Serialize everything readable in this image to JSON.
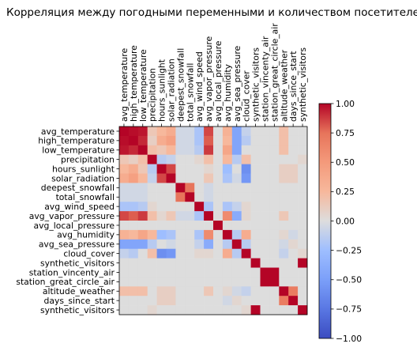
{
  "chart_data": {
    "type": "heatmap",
    "title": "Корреляция между погодными переменными и количеством посетителей",
    "xlabel": "",
    "ylabel": "",
    "variables": [
      "avg_temperature",
      "high_temperature",
      "low_temperature",
      "precipitation",
      "hours_sunlight",
      "solar_radiation",
      "deepest_snowfall",
      "total_snowfall",
      "avg_wind_speed",
      "avg_vapor_pressure",
      "avg_local_pressure",
      "avg_humidity",
      "avg_sea_pressure",
      "cloud_cover",
      "synthetic_visitors",
      "station_vincenty_air",
      "station_great_circle_air",
      "altitude_weather",
      "days_since_start",
      "synthetic_visitors"
    ],
    "matrix": [
      [
        1.0,
        0.98,
        0.96,
        0.15,
        0.25,
        0.35,
        -0.05,
        -0.05,
        -0.2,
        0.85,
        0.0,
        0.3,
        -0.45,
        -0.1,
        0.0,
        0.0,
        0.0,
        0.2,
        0.0,
        0.0
      ],
      [
        0.98,
        1.0,
        0.92,
        0.1,
        0.35,
        0.45,
        -0.05,
        -0.05,
        -0.2,
        0.8,
        0.0,
        0.25,
        -0.45,
        -0.15,
        0.0,
        0.0,
        0.0,
        0.2,
        0.0,
        0.0
      ],
      [
        0.96,
        0.92,
        1.0,
        0.2,
        0.15,
        0.25,
        -0.05,
        -0.05,
        -0.15,
        0.88,
        0.0,
        0.4,
        -0.45,
        0.0,
        0.0,
        0.0,
        0.0,
        0.2,
        0.0,
        0.0
      ],
      [
        0.15,
        0.1,
        0.2,
        1.0,
        -0.15,
        -0.1,
        0.0,
        0.0,
        0.05,
        0.2,
        0.0,
        0.25,
        -0.15,
        0.2,
        0.0,
        0.0,
        0.0,
        0.0,
        0.0,
        0.05
      ],
      [
        0.25,
        0.35,
        0.15,
        -0.15,
        1.0,
        0.85,
        0.0,
        0.0,
        0.0,
        0.05,
        0.0,
        -0.25,
        0.0,
        -0.6,
        0.0,
        0.0,
        0.0,
        0.1,
        0.1,
        0.0
      ],
      [
        0.35,
        0.45,
        0.25,
        -0.1,
        0.85,
        1.0,
        0.0,
        0.0,
        0.0,
        0.15,
        0.0,
        -0.2,
        -0.05,
        -0.55,
        0.0,
        0.0,
        0.0,
        0.1,
        0.1,
        0.0
      ],
      [
        -0.05,
        -0.05,
        -0.05,
        0.0,
        0.0,
        0.0,
        1.0,
        0.75,
        0.0,
        -0.05,
        0.0,
        0.0,
        0.0,
        0.0,
        0.0,
        0.0,
        0.0,
        0.0,
        0.0,
        0.0
      ],
      [
        -0.05,
        -0.05,
        -0.05,
        0.0,
        0.0,
        0.0,
        0.75,
        1.0,
        0.0,
        -0.05,
        0.0,
        0.0,
        0.0,
        0.0,
        0.0,
        0.0,
        0.0,
        0.0,
        0.0,
        0.0
      ],
      [
        -0.2,
        -0.2,
        -0.15,
        0.05,
        0.0,
        0.0,
        0.0,
        0.0,
        1.0,
        -0.2,
        0.0,
        -0.2,
        -0.1,
        0.05,
        0.0,
        0.0,
        0.0,
        0.0,
        0.0,
        0.0
      ],
      [
        0.85,
        0.8,
        0.88,
        0.2,
        0.05,
        0.15,
        -0.05,
        -0.05,
        -0.2,
        1.0,
        0.0,
        0.6,
        -0.4,
        0.05,
        0.0,
        0.0,
        0.0,
        0.15,
        0.0,
        0.0
      ],
      [
        0.0,
        0.0,
        0.0,
        0.0,
        0.0,
        0.0,
        0.0,
        0.0,
        0.0,
        0.0,
        1.0,
        0.0,
        0.0,
        0.0,
        0.0,
        0.0,
        0.0,
        0.0,
        0.0,
        0.0
      ],
      [
        0.3,
        0.25,
        0.4,
        0.25,
        -0.25,
        -0.2,
        0.0,
        0.0,
        -0.2,
        0.6,
        0.0,
        1.0,
        -0.15,
        0.35,
        0.0,
        0.0,
        0.0,
        0.05,
        -0.05,
        0.0
      ],
      [
        -0.45,
        -0.45,
        -0.45,
        -0.15,
        0.0,
        -0.05,
        0.0,
        0.0,
        -0.1,
        -0.4,
        0.0,
        -0.15,
        1.0,
        -0.15,
        0.0,
        0.0,
        0.0,
        -0.05,
        0.05,
        0.0
      ],
      [
        -0.1,
        -0.15,
        0.0,
        0.2,
        -0.6,
        -0.55,
        0.0,
        0.0,
        0.05,
        0.05,
        0.0,
        0.35,
        -0.15,
        1.0,
        0.0,
        0.0,
        0.0,
        -0.1,
        0.0,
        0.05
      ],
      [
        0.0,
        0.0,
        0.0,
        0.0,
        0.0,
        0.0,
        0.0,
        0.0,
        0.0,
        0.0,
        0.0,
        0.0,
        0.0,
        0.0,
        1.0,
        0.0,
        0.0,
        0.0,
        0.0,
        1.0
      ],
      [
        0.0,
        0.0,
        0.0,
        0.0,
        0.0,
        0.0,
        0.0,
        0.0,
        0.0,
        0.0,
        0.0,
        0.0,
        0.0,
        0.0,
        0.0,
        1.0,
        1.0,
        0.0,
        0.0,
        0.0
      ],
      [
        0.0,
        0.0,
        0.0,
        0.0,
        0.0,
        0.0,
        0.0,
        0.0,
        0.0,
        0.0,
        0.0,
        0.0,
        0.0,
        0.0,
        0.0,
        1.0,
        1.0,
        0.0,
        0.0,
        0.0
      ],
      [
        0.2,
        0.2,
        0.2,
        0.0,
        0.1,
        0.1,
        0.0,
        0.0,
        0.0,
        0.15,
        0.0,
        0.05,
        -0.05,
        -0.1,
        0.0,
        0.0,
        0.0,
        1.0,
        0.7,
        0.0
      ],
      [
        0.0,
        0.0,
        0.0,
        0.0,
        0.1,
        0.1,
        0.0,
        0.0,
        0.0,
        0.0,
        0.0,
        -0.05,
        0.05,
        0.0,
        0.0,
        0.0,
        0.0,
        0.7,
        1.0,
        0.0
      ],
      [
        0.0,
        0.0,
        0.0,
        0.05,
        0.0,
        0.0,
        0.0,
        0.0,
        0.0,
        0.0,
        0.0,
        0.0,
        0.0,
        0.05,
        1.0,
        0.0,
        0.0,
        0.0,
        0.0,
        1.0
      ]
    ],
    "colormap": "coolwarm",
    "vmin": -1.0,
    "vmax": 1.0,
    "colorbar_ticks": [
      "1.00",
      "0.75",
      "0.50",
      "0.25",
      "0.00",
      "−0.25",
      "−0.50",
      "−0.75",
      "−1.00"
    ],
    "colorbar_tick_values": [
      1.0,
      0.75,
      0.5,
      0.25,
      0.0,
      -0.25,
      -0.5,
      -0.75,
      -1.0
    ],
    "grid": false,
    "colorbar_placement": "right"
  }
}
